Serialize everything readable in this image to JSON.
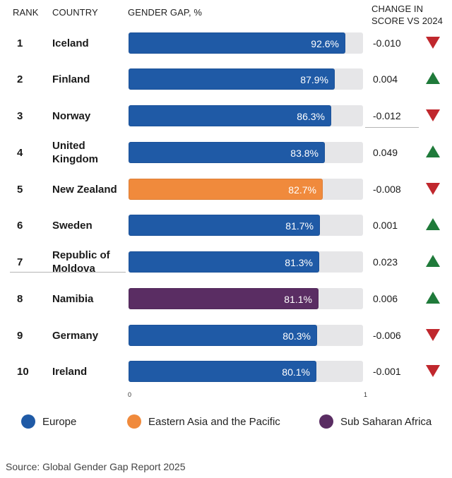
{
  "headers": {
    "rank": "RANK",
    "country": "COUNTRY",
    "gap": "GENDER GAP, %",
    "change_line1": "CHANGE IN",
    "change_line2": "SCORE VS 2024"
  },
  "colors": {
    "Europe": "#1f5aa6",
    "Eastern Asia and the Pacific": "#f08a3c",
    "Sub Saharan Africa": "#5a2d63",
    "up": "#1f7a3a",
    "down": "#c0272d"
  },
  "chart_data": {
    "type": "bar",
    "orientation": "horizontal",
    "xlim": [
      0,
      1
    ],
    "x_ticks": [
      "0",
      "1"
    ],
    "rows": [
      {
        "rank": "1",
        "country": "Iceland",
        "value": 0.926,
        "label": "92.6%",
        "region": "Europe",
        "change": "-0.010",
        "direction": "down"
      },
      {
        "rank": "2",
        "country": "Finland",
        "value": 0.879,
        "label": "87.9%",
        "region": "Europe",
        "change": "0.004",
        "direction": "up"
      },
      {
        "rank": "3",
        "country": "Norway",
        "value": 0.863,
        "label": "86.3%",
        "region": "Europe",
        "change": "-0.012",
        "direction": "down"
      },
      {
        "rank": "4",
        "country": "United Kingdom",
        "value": 0.838,
        "label": "83.8%",
        "region": "Europe",
        "change": "0.049",
        "direction": "up"
      },
      {
        "rank": "5",
        "country": "New Zealand",
        "value": 0.827,
        "label": "82.7%",
        "region": "Eastern Asia and the Pacific",
        "change": "-0.008",
        "direction": "down"
      },
      {
        "rank": "6",
        "country": "Sweden",
        "value": 0.817,
        "label": "81.7%",
        "region": "Europe",
        "change": "0.001",
        "direction": "up"
      },
      {
        "rank": "7",
        "country": "Republic of Moldova",
        "value": 0.813,
        "label": "81.3%",
        "region": "Europe",
        "change": "0.023",
        "direction": "up"
      },
      {
        "rank": "8",
        "country": "Namibia",
        "value": 0.811,
        "label": "81.1%",
        "region": "Sub Saharan Africa",
        "change": "0.006",
        "direction": "up"
      },
      {
        "rank": "9",
        "country": "Germany",
        "value": 0.803,
        "label": "80.3%",
        "region": "Europe",
        "change": "-0.006",
        "direction": "down"
      },
      {
        "rank": "10",
        "country": "Ireland",
        "value": 0.801,
        "label": "80.1%",
        "region": "Europe",
        "change": "-0.001",
        "direction": "down"
      }
    ],
    "legend": [
      "Europe",
      "Eastern Asia and the Pacific",
      "Sub Saharan Africa"
    ],
    "legend_placement": "bottom"
  },
  "source": {
    "label": "Source:",
    "text": " Global Gender Gap Report 2025"
  }
}
